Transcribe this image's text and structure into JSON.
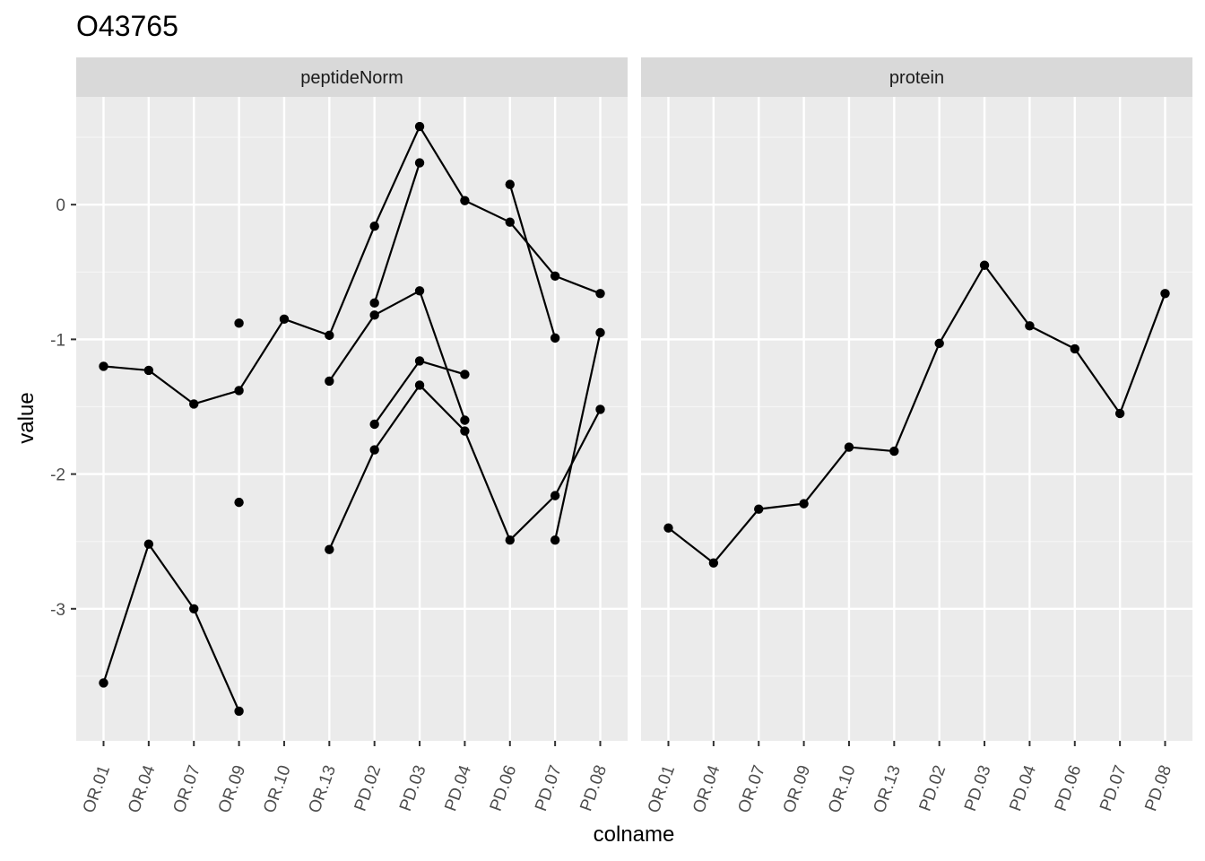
{
  "chart_data": {
    "type": "line",
    "title": "O43765",
    "xlabel": "colname",
    "ylabel": "value",
    "categories": [
      "OR.01",
      "OR.04",
      "OR.07",
      "OR.09",
      "OR.10",
      "OR.13",
      "PD.02",
      "PD.03",
      "PD.04",
      "PD.06",
      "PD.07",
      "PD.08"
    ],
    "y_ticks": [
      0,
      -1,
      -2,
      -3
    ],
    "y_tick_labels": [
      "0",
      "-1",
      "-2",
      "-3"
    ],
    "ylim": [
      -3.98,
      0.8
    ],
    "grid": true,
    "panels": [
      {
        "name": "peptideNorm",
        "series": [
          {
            "values": [
              -1.2,
              -1.23,
              -1.48,
              -1.38,
              -0.85,
              -0.97,
              -0.16,
              0.58,
              0.03,
              -0.13,
              -0.53,
              -0.66
            ]
          },
          {
            "values": [
              -3.55,
              -2.52,
              -3.0,
              -3.76,
              null,
              -2.56,
              -1.82,
              -1.34,
              -1.68,
              -2.49,
              -2.16,
              -1.52
            ]
          },
          {
            "values": [
              null,
              null,
              null,
              -0.88,
              null,
              -1.31,
              -0.82,
              -0.64,
              -1.6,
              null,
              null,
              null
            ]
          },
          {
            "values": [
              null,
              null,
              null,
              -2.21,
              null,
              null,
              -0.73,
              0.31,
              null,
              0.15,
              -0.99,
              null
            ]
          },
          {
            "values": [
              null,
              null,
              null,
              null,
              null,
              null,
              -1.63,
              -1.16,
              -1.26,
              null,
              -2.49,
              -0.95
            ]
          }
        ]
      },
      {
        "name": "protein",
        "series": [
          {
            "values": [
              -2.4,
              -2.66,
              -2.26,
              -2.22,
              -1.8,
              -1.83,
              -1.03,
              -0.45,
              -0.9,
              -1.07,
              -1.55,
              -0.66
            ]
          }
        ]
      }
    ]
  }
}
